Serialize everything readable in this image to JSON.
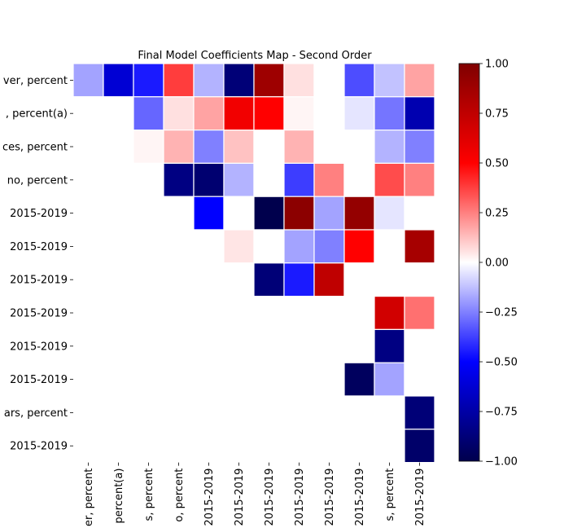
{
  "chart_data": {
    "type": "heatmap",
    "title": "Final Model Coefficients Map - Second Order",
    "row_labels": [
      "ver, percent",
      ", percent(a)",
      "ces, percent",
      "no, percent",
      "2015-2019",
      "2015-2019",
      "2015-2019",
      "2015-2019",
      "2015-2019",
      "2015-2019",
      "ars, percent",
      "2015-2019"
    ],
    "col_labels": [
      "er, percent",
      "percent(a)",
      "s, percent",
      "o, percent",
      "2015-2019",
      "2015-2019",
      "2015-2019",
      "2015-2019",
      "2015-2019",
      "2015-2019",
      "s, percent",
      "2015-2019"
    ],
    "values": [
      [
        -0.18,
        -0.62,
        -0.45,
        0.38,
        -0.15,
        -0.88,
        0.88,
        0.06,
        0.0,
        -0.35,
        -0.12,
        0.18
      ],
      [
        0.0,
        0.0,
        -0.3,
        0.06,
        0.18,
        0.55,
        0.5,
        0.02,
        0.0,
        -0.05,
        -0.27,
        -0.72
      ],
      [
        0.0,
        0.0,
        0.02,
        0.15,
        -0.25,
        0.12,
        0.0,
        0.15,
        0.0,
        0.0,
        -0.15,
        -0.25
      ],
      [
        0.0,
        0.0,
        0.0,
        -0.85,
        -0.9,
        -0.15,
        0.0,
        -0.38,
        0.25,
        0.0,
        0.35,
        0.25
      ],
      [
        0.0,
        0.0,
        0.0,
        0.0,
        -0.5,
        0.0,
        -1.0,
        0.95,
        -0.18,
        0.92,
        -0.05,
        0.0
      ],
      [
        0.0,
        0.0,
        0.0,
        0.0,
        0.0,
        0.05,
        0.0,
        -0.18,
        -0.25,
        0.5,
        0.0,
        0.85
      ],
      [
        0.0,
        0.0,
        0.0,
        0.0,
        0.0,
        0.0,
        -0.88,
        -0.45,
        0.75,
        0.0,
        0.0,
        0.0
      ],
      [
        0.0,
        0.0,
        0.0,
        0.0,
        0.0,
        0.0,
        0.0,
        0.0,
        0.0,
        0.0,
        0.68,
        0.28
      ],
      [
        0.0,
        0.0,
        0.0,
        0.0,
        0.0,
        0.0,
        0.0,
        0.0,
        0.0,
        0.0,
        -0.85,
        0.0
      ],
      [
        0.0,
        0.0,
        0.0,
        0.0,
        0.0,
        0.0,
        0.0,
        0.0,
        0.0,
        -0.95,
        -0.18,
        0.0
      ],
      [
        0.0,
        0.0,
        0.0,
        0.0,
        0.0,
        0.0,
        0.0,
        0.0,
        0.0,
        0.0,
        0.0,
        -0.88
      ],
      [
        0.0,
        0.0,
        0.0,
        0.0,
        0.0,
        0.0,
        0.0,
        0.0,
        0.0,
        0.0,
        0.0,
        -0.92
      ]
    ],
    "colormap": "seismic",
    "vmin": -1.0,
    "vmax": 1.0,
    "colorbar_ticks": [
      "1.00",
      "0.75",
      "0.50",
      "0.25",
      "0.00",
      "−0.25",
      "−0.50",
      "−0.75",
      "−1.00"
    ],
    "colorbar_values": [
      1.0,
      0.75,
      0.5,
      0.25,
      0.0,
      -0.25,
      -0.5,
      -0.75,
      -1.0
    ]
  }
}
